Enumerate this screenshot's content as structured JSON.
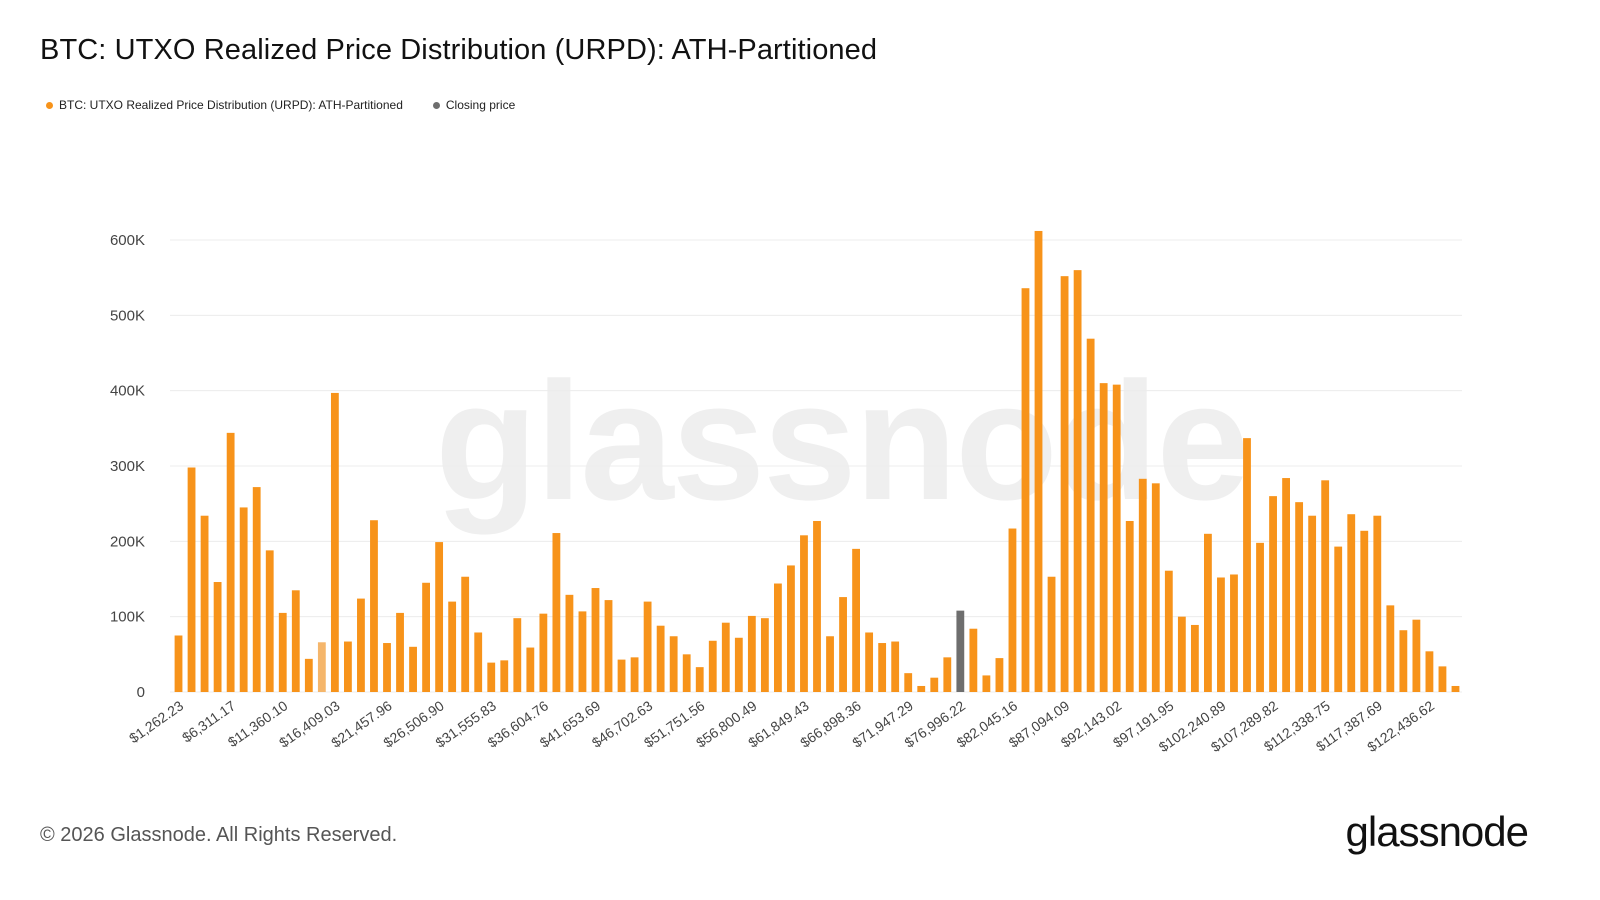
{
  "title": "BTC: UTXO Realized Price Distribution (URPD): ATH-Partitioned",
  "legend": [
    {
      "label": "BTC: UTXO Realized Price Distribution (URPD): ATH-Partitioned",
      "color": "#f7931a"
    },
    {
      "label": "Closing price",
      "color": "#6e6e6e"
    }
  ],
  "watermark": "glassnode",
  "footer": {
    "copyright": "© 2026 Glassnode. All Rights Reserved.",
    "logo": "glassnode"
  },
  "chart_data": {
    "type": "bar",
    "title": "BTC: UTXO Realized Price Distribution (URPD): ATH-Partitioned",
    "xlabel": "",
    "ylabel": "",
    "ylim": [
      0,
      600000
    ],
    "yticks": [
      0,
      100000,
      200000,
      300000,
      400000,
      500000,
      600000
    ],
    "ytick_labels": [
      "0",
      "100K",
      "200K",
      "300K",
      "400K",
      "500K",
      "600K"
    ],
    "x_tick_labels": [
      "$1,262.23",
      "$6,311.17",
      "$11,360.10",
      "$16,409.03",
      "$21,457.96",
      "$26,506.90",
      "$31,555.83",
      "$36,604.76",
      "$41,653.69",
      "$46,702.63",
      "$51,751.56",
      "$56,800.49",
      "$61,849.43",
      "$66,898.36",
      "$71,947.29",
      "$76,996.22",
      "$82,045.16",
      "$87,094.09",
      "$92,143.02",
      "$97,191.95",
      "$102,240.89",
      "$107,289.82",
      "$112,338.75",
      "$117,387.69",
      "$122,436.62"
    ],
    "tick_every": 4,
    "grid": true,
    "legend_position": "top-left",
    "colors": {
      "bar": "#f7931a",
      "highlight_light": "#f5b66b",
      "closing": "#6e6e6e"
    },
    "values": [
      75000,
      298000,
      234000,
      146000,
      344000,
      245000,
      272000,
      188000,
      105000,
      135000,
      44000,
      66000,
      397000,
      67000,
      124000,
      228000,
      65000,
      105000,
      60000,
      145000,
      199000,
      120000,
      153000,
      79000,
      39000,
      42000,
      98000,
      59000,
      104000,
      211000,
      129000,
      107000,
      138000,
      122000,
      43000,
      46000,
      120000,
      88000,
      74000,
      50000,
      33000,
      68000,
      92000,
      72000,
      101000,
      98000,
      144000,
      168000,
      208000,
      227000,
      74000,
      126000,
      190000,
      79000,
      65000,
      67000,
      25000,
      8000,
      19000,
      46000,
      108000,
      84000,
      22000,
      45000,
      217000,
      536000,
      612000,
      153000,
      552000,
      560000,
      469000,
      410000,
      408000,
      227000,
      283000,
      277000,
      161000,
      100000,
      89000,
      210000,
      152000,
      156000,
      337000,
      198000,
      260000,
      284000,
      252000,
      234000,
      281000,
      193000,
      236000,
      214000,
      234000,
      115000,
      82000,
      96000,
      54000,
      34000,
      8000
    ],
    "highlight_light_index": 11,
    "closing_price_index": 60
  }
}
